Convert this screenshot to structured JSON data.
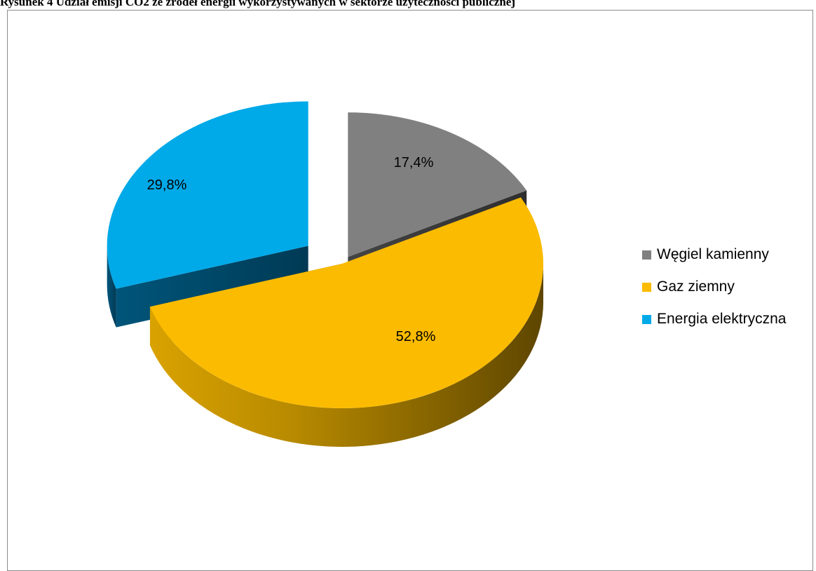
{
  "caption": "Rysunek 4 Udział emisji CO2 ze źródeł energii wykorzystywanych w sektorze użyteczności publicznej",
  "chart_data": {
    "type": "pie",
    "style": "3d-exploded",
    "title": "",
    "legend_position": "right",
    "categories": [
      "Węgiel kamienny",
      "Gaz ziemny",
      "Energia elektryczna"
    ],
    "values": [
      17.4,
      52.8,
      29.8
    ],
    "data_labels": [
      "17,4%",
      "52,8%",
      "29,8%"
    ],
    "colors": [
      "#808080",
      "#FBBB00",
      "#00A9E8"
    ]
  }
}
